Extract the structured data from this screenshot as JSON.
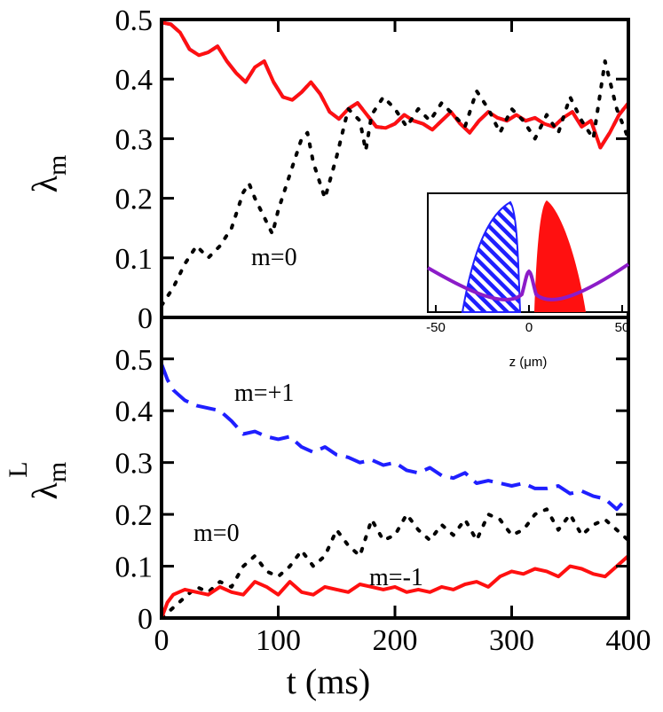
{
  "chart_data": [
    {
      "panel": "top",
      "type": "line",
      "ylabel": "λ",
      "ylabel_sub": "m",
      "xlim": [
        0,
        400
      ],
      "ylim": [
        0,
        0.5
      ],
      "yticks": [
        "0",
        "0.1",
        "0.2",
        "0.3",
        "0.4",
        "0.5"
      ],
      "annotations": [
        {
          "text": "m=0",
          "x": 120,
          "y": 0.1
        }
      ],
      "series": [
        {
          "name": "m=+1",
          "style": "dashed",
          "color": "#1f1fff",
          "x": [
            0,
            8,
            16,
            24,
            32,
            40,
            48,
            56,
            64,
            72,
            80,
            88,
            96,
            104,
            112,
            120,
            128,
            136,
            144,
            152,
            160,
            168,
            176,
            184,
            192,
            200,
            208,
            216,
            224,
            232,
            240,
            248,
            256,
            264,
            272,
            280,
            288,
            296,
            304,
            312,
            320,
            328,
            336,
            344,
            352,
            360,
            368,
            376,
            384,
            392,
            400
          ],
          "y": [
            0.495,
            0.492,
            0.478,
            0.45,
            0.44,
            0.445,
            0.455,
            0.43,
            0.41,
            0.395,
            0.42,
            0.43,
            0.395,
            0.37,
            0.365,
            0.378,
            0.395,
            0.375,
            0.345,
            0.333,
            0.35,
            0.36,
            0.34,
            0.32,
            0.318,
            0.325,
            0.34,
            0.33,
            0.325,
            0.315,
            0.33,
            0.345,
            0.325,
            0.31,
            0.33,
            0.345,
            0.335,
            0.33,
            0.34,
            0.33,
            0.335,
            0.325,
            0.32,
            0.335,
            0.345,
            0.32,
            0.33,
            0.285,
            0.31,
            0.34,
            0.36
          ]
        },
        {
          "name": "m=-1",
          "style": "solid",
          "color": "#ff1010",
          "x": [
            0,
            8,
            16,
            24,
            32,
            40,
            48,
            56,
            64,
            72,
            80,
            88,
            96,
            104,
            112,
            120,
            128,
            136,
            144,
            152,
            160,
            168,
            176,
            184,
            192,
            200,
            208,
            216,
            224,
            232,
            240,
            248,
            256,
            264,
            272,
            280,
            288,
            296,
            304,
            312,
            320,
            328,
            336,
            344,
            352,
            360,
            368,
            376,
            384,
            392,
            400
          ],
          "y": [
            0.495,
            0.492,
            0.478,
            0.45,
            0.44,
            0.445,
            0.455,
            0.43,
            0.41,
            0.395,
            0.42,
            0.43,
            0.395,
            0.37,
            0.365,
            0.378,
            0.395,
            0.375,
            0.345,
            0.333,
            0.35,
            0.36,
            0.34,
            0.32,
            0.318,
            0.325,
            0.34,
            0.33,
            0.325,
            0.315,
            0.33,
            0.345,
            0.325,
            0.31,
            0.33,
            0.345,
            0.335,
            0.33,
            0.34,
            0.33,
            0.335,
            0.325,
            0.32,
            0.335,
            0.345,
            0.32,
            0.33,
            0.285,
            0.31,
            0.34,
            0.36
          ]
        },
        {
          "name": "m=0",
          "style": "dotted",
          "color": "#000000",
          "x": [
            0,
            10,
            20,
            30,
            40,
            50,
            60,
            70,
            75,
            80,
            90,
            95,
            100,
            110,
            120,
            125,
            130,
            140,
            150,
            160,
            170,
            175,
            180,
            190,
            200,
            210,
            220,
            230,
            240,
            250,
            260,
            270,
            280,
            290,
            300,
            310,
            320,
            330,
            340,
            350,
            360,
            370,
            380,
            390,
            400
          ],
          "y": [
            0.02,
            0.05,
            0.09,
            0.12,
            0.1,
            0.12,
            0.15,
            0.21,
            0.225,
            0.2,
            0.16,
            0.14,
            0.18,
            0.24,
            0.3,
            0.31,
            0.26,
            0.2,
            0.27,
            0.35,
            0.33,
            0.28,
            0.34,
            0.37,
            0.35,
            0.32,
            0.35,
            0.33,
            0.36,
            0.34,
            0.32,
            0.38,
            0.35,
            0.31,
            0.35,
            0.33,
            0.3,
            0.34,
            0.31,
            0.37,
            0.33,
            0.3,
            0.43,
            0.35,
            0.3
          ]
        }
      ]
    },
    {
      "panel": "bottom",
      "type": "line",
      "ylabel": "λ",
      "ylabel_sub": "m",
      "ylabel_sup": "L",
      "xlabel": "t (ms)",
      "xlim": [
        0,
        400
      ],
      "ylim": [
        0,
        0.58
      ],
      "xticks": [
        "0",
        "100",
        "200",
        "300",
        "400"
      ],
      "yticks": [
        "0",
        "0.1",
        "0.2",
        "0.3",
        "0.4",
        "0.5"
      ],
      "annotations": [
        {
          "text": "m=+1",
          "x": 62,
          "y": 0.46
        },
        {
          "text": "m=0",
          "x": 32,
          "y": 0.165
        },
        {
          "text": "m=-1",
          "x": 180,
          "y": 0.09
        }
      ],
      "series": [
        {
          "name": "m=+1",
          "style": "dashed",
          "color": "#1f1fff",
          "x": [
            0,
            5,
            10,
            15,
            20,
            30,
            40,
            50,
            60,
            70,
            80,
            90,
            100,
            110,
            120,
            130,
            140,
            150,
            160,
            170,
            180,
            190,
            200,
            210,
            220,
            230,
            240,
            250,
            260,
            270,
            280,
            290,
            300,
            310,
            320,
            330,
            340,
            350,
            360,
            370,
            380,
            390,
            400
          ],
          "y": [
            0.49,
            0.46,
            0.44,
            0.43,
            0.42,
            0.41,
            0.405,
            0.4,
            0.38,
            0.355,
            0.36,
            0.35,
            0.345,
            0.35,
            0.33,
            0.32,
            0.33,
            0.315,
            0.31,
            0.3,
            0.305,
            0.295,
            0.3,
            0.285,
            0.28,
            0.29,
            0.275,
            0.27,
            0.28,
            0.26,
            0.265,
            0.26,
            0.255,
            0.26,
            0.25,
            0.25,
            0.255,
            0.24,
            0.245,
            0.235,
            0.23,
            0.21,
            0.235
          ]
        },
        {
          "name": "m=0",
          "style": "dotted",
          "color": "#000000",
          "x": [
            0,
            10,
            20,
            30,
            40,
            50,
            60,
            70,
            80,
            90,
            100,
            110,
            120,
            130,
            140,
            150,
            160,
            170,
            180,
            190,
            200,
            210,
            220,
            230,
            240,
            250,
            260,
            270,
            280,
            290,
            300,
            310,
            320,
            330,
            340,
            350,
            360,
            370,
            380,
            390,
            400
          ],
          "y": [
            0.0,
            0.02,
            0.04,
            0.06,
            0.05,
            0.07,
            0.06,
            0.1,
            0.12,
            0.09,
            0.08,
            0.1,
            0.13,
            0.1,
            0.12,
            0.17,
            0.14,
            0.12,
            0.19,
            0.15,
            0.16,
            0.2,
            0.17,
            0.15,
            0.18,
            0.16,
            0.19,
            0.15,
            0.2,
            0.19,
            0.16,
            0.17,
            0.2,
            0.21,
            0.17,
            0.2,
            0.16,
            0.18,
            0.19,
            0.17,
            0.15
          ]
        },
        {
          "name": "m=-1",
          "style": "solid",
          "color": "#ff1010",
          "x": [
            0,
            5,
            10,
            15,
            20,
            30,
            40,
            50,
            60,
            70,
            80,
            90,
            100,
            110,
            120,
            130,
            140,
            150,
            160,
            170,
            180,
            190,
            200,
            210,
            220,
            230,
            240,
            250,
            260,
            270,
            280,
            290,
            300,
            310,
            320,
            330,
            340,
            350,
            360,
            370,
            380,
            390,
            400
          ],
          "y": [
            0.0,
            0.03,
            0.045,
            0.05,
            0.055,
            0.05,
            0.045,
            0.06,
            0.05,
            0.045,
            0.07,
            0.06,
            0.045,
            0.07,
            0.05,
            0.045,
            0.06,
            0.055,
            0.05,
            0.065,
            0.06,
            0.055,
            0.06,
            0.05,
            0.055,
            0.05,
            0.06,
            0.055,
            0.065,
            0.07,
            0.06,
            0.08,
            0.09,
            0.085,
            0.095,
            0.09,
            0.08,
            0.1,
            0.095,
            0.085,
            0.08,
            0.1,
            0.12
          ]
        }
      ]
    }
  ],
  "inset": {
    "xlabel": "z (μm)",
    "xticks": [
      "-50",
      "0",
      "50"
    ]
  },
  "colors": {
    "blue": "#1f1fff",
    "red": "#ff1010",
    "purple": "#8c1cc8",
    "black": "#000000"
  }
}
